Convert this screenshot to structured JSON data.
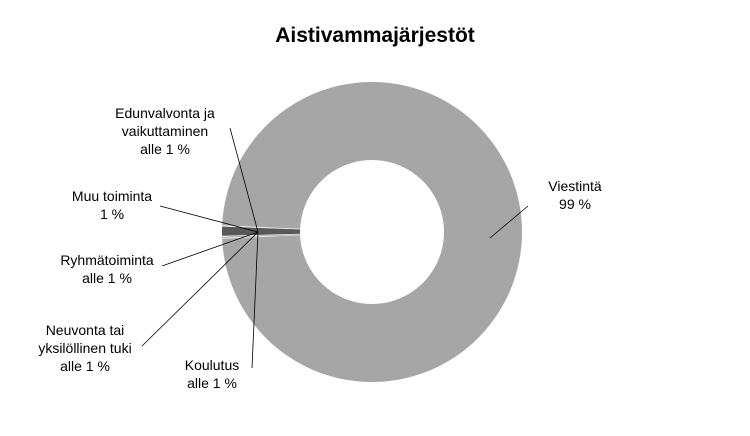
{
  "chart_data": {
    "type": "donut",
    "title": "Aistivammajärjestöt",
    "categories": [
      "Viestintä",
      "Koulutus",
      "Neuvonta tai yksilöllinen tuki",
      "Ryhmätoiminta",
      "Muu toiminta",
      "Edunvalvonta ja vaikuttaminen"
    ],
    "values": [
      99,
      0.1,
      0.1,
      0.1,
      1,
      0.1
    ],
    "value_labels": [
      "99 %",
      "alle 1 %",
      "alle 1 %",
      "alle 1 %",
      "1 %",
      "alle 1 %"
    ],
    "colors": [
      "#a6a6a6",
      "#ffffff",
      "#7f7f7f",
      "#ffffff",
      "#595959",
      "#ffffff"
    ]
  }
}
